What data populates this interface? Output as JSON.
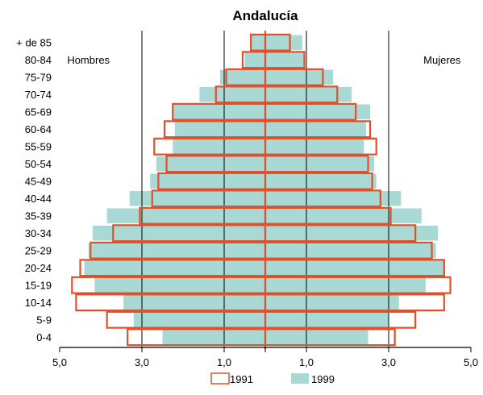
{
  "chart_data": {
    "type": "bar",
    "title": "Andalucía",
    "left_label": "Hombres",
    "right_label": "Mujeres",
    "categories": [
      "+ de 85",
      "80-84",
      "75-79",
      "70-74",
      "65-69",
      "60-64",
      "55-59",
      "50-54",
      "45-49",
      "40-44",
      "35-39",
      "30-34",
      "25-29",
      "20-24",
      "15-19",
      "10-14",
      "5-9",
      "0-4"
    ],
    "x_tick_labels": [
      "5,0",
      "3,0",
      "1,0",
      "1,0",
      "3,0",
      "5,0"
    ],
    "x_tick_values": [
      -5,
      -3,
      -1,
      1,
      3,
      5
    ],
    "xlim": [
      -5,
      5
    ],
    "series": [
      {
        "name": "1991",
        "style": "outline",
        "color": "#E0502A",
        "men": [
          0.35,
          0.55,
          0.95,
          1.2,
          2.25,
          2.45,
          2.7,
          2.4,
          2.6,
          2.75,
          3.05,
          3.7,
          4.25,
          4.5,
          4.7,
          4.6,
          3.85,
          3.35
        ],
        "women": [
          0.6,
          0.95,
          1.4,
          1.75,
          2.2,
          2.55,
          2.7,
          2.5,
          2.6,
          2.8,
          3.05,
          3.65,
          4.05,
          4.35,
          4.5,
          4.35,
          3.65,
          3.15
        ]
      },
      {
        "name": "1999",
        "style": "fill",
        "color": "#A9D9D5",
        "men": [
          0.35,
          0.5,
          1.1,
          1.6,
          2.25,
          2.2,
          2.25,
          2.65,
          2.8,
          3.3,
          3.85,
          4.2,
          4.3,
          4.4,
          4.15,
          3.45,
          3.2,
          2.5
        ],
        "women": [
          0.9,
          0.95,
          1.65,
          2.1,
          2.55,
          2.45,
          2.4,
          2.65,
          2.7,
          3.3,
          3.8,
          4.2,
          4.15,
          4.35,
          3.9,
          3.25,
          3.0,
          2.5
        ]
      }
    ],
    "grid_lines_at": [
      -3,
      -1,
      1,
      3
    ],
    "legend_position": "bottom-center"
  }
}
